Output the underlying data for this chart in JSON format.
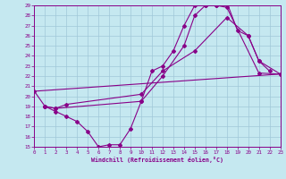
{
  "xlabel": "Windchill (Refroidissement éolien,°C)",
  "background_color": "#c5e8f0",
  "grid_color": "#a0c8d8",
  "line_color": "#880088",
  "xlim": [
    0,
    23
  ],
  "ylim": [
    15,
    29
  ],
  "xticks": [
    0,
    1,
    2,
    3,
    4,
    5,
    6,
    7,
    8,
    9,
    10,
    11,
    12,
    13,
    14,
    15,
    16,
    17,
    18,
    19,
    20,
    21,
    22,
    23
  ],
  "yticks": [
    15,
    16,
    17,
    18,
    19,
    20,
    21,
    22,
    23,
    24,
    25,
    26,
    27,
    28,
    29
  ],
  "curve1_x": [
    0,
    1,
    2,
    3,
    4,
    5,
    6,
    7,
    8,
    9,
    10,
    11,
    12,
    13,
    14,
    15,
    16,
    17,
    18,
    19,
    20,
    21,
    22
  ],
  "curve1_y": [
    20.5,
    19.0,
    18.5,
    18.0,
    17.5,
    16.5,
    15.0,
    15.2,
    15.2,
    16.8,
    19.5,
    22.5,
    23.0,
    24.5,
    27.0,
    29.0,
    29.0,
    29.0,
    29.3,
    26.5,
    26.0,
    23.5,
    22.5
  ],
  "curve2_x": [
    1,
    2,
    10,
    12,
    14,
    15,
    16,
    17,
    18,
    21,
    23
  ],
  "curve2_y": [
    19.0,
    18.8,
    19.5,
    22.0,
    25.0,
    28.0,
    29.0,
    29.0,
    28.8,
    22.3,
    22.2
  ],
  "curve3_x": [
    0,
    23
  ],
  "curve3_y": [
    20.5,
    22.2
  ],
  "curve4_x": [
    1,
    2,
    3,
    10,
    12,
    15,
    18,
    20,
    21,
    23
  ],
  "curve4_y": [
    19.0,
    18.8,
    19.2,
    20.2,
    22.5,
    24.5,
    27.8,
    26.0,
    23.5,
    22.2
  ]
}
